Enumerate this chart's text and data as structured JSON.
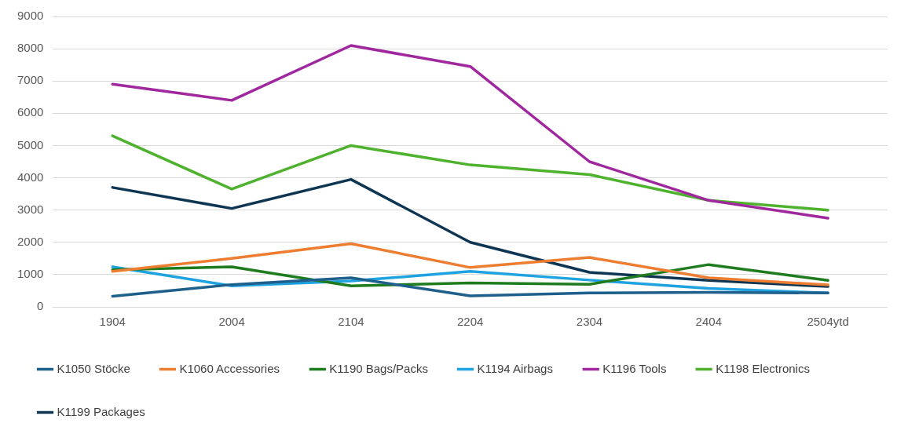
{
  "chart_data": {
    "type": "line",
    "categories": [
      "1904",
      "2004",
      "2104",
      "2204",
      "2304",
      "2404",
      "2504ytd"
    ],
    "series": [
      {
        "name": "K1050 Stöcke",
        "color": "#1f5f8b",
        "values": [
          330,
          690,
          900,
          340,
          430,
          450,
          430
        ]
      },
      {
        "name": "K1060 Accessories",
        "color": "#ed7d31",
        "values": [
          1100,
          1500,
          1960,
          1220,
          1530,
          900,
          680
        ]
      },
      {
        "name": "K1190 Bags/Packs",
        "color": "#1e7b1e",
        "values": [
          1150,
          1240,
          650,
          740,
          700,
          1310,
          820
        ]
      },
      {
        "name": "K1194 Airbags",
        "color": "#1fa3e0",
        "values": [
          1240,
          650,
          800,
          1100,
          830,
          570,
          430
        ]
      },
      {
        "name": "K1196 Tools",
        "color": "#a0289e",
        "values": [
          6900,
          6400,
          8100,
          7450,
          4500,
          3300,
          2750
        ]
      },
      {
        "name": "K1198 Electronics",
        "color": "#4eb22e",
        "values": [
          5300,
          3650,
          5000,
          4400,
          4100,
          3300,
          3000
        ]
      },
      {
        "name": "K1199 Packages",
        "color": "#0e3653",
        "values": [
          3700,
          3050,
          3950,
          2000,
          1070,
          820,
          630
        ]
      }
    ],
    "ylim": [
      0,
      9000
    ],
    "yticks": [
      0,
      1000,
      2000,
      3000,
      4000,
      5000,
      6000,
      7000,
      8000,
      9000
    ],
    "grid": "y",
    "legend": "bottom",
    "marker": "none",
    "line_style": "solid"
  }
}
